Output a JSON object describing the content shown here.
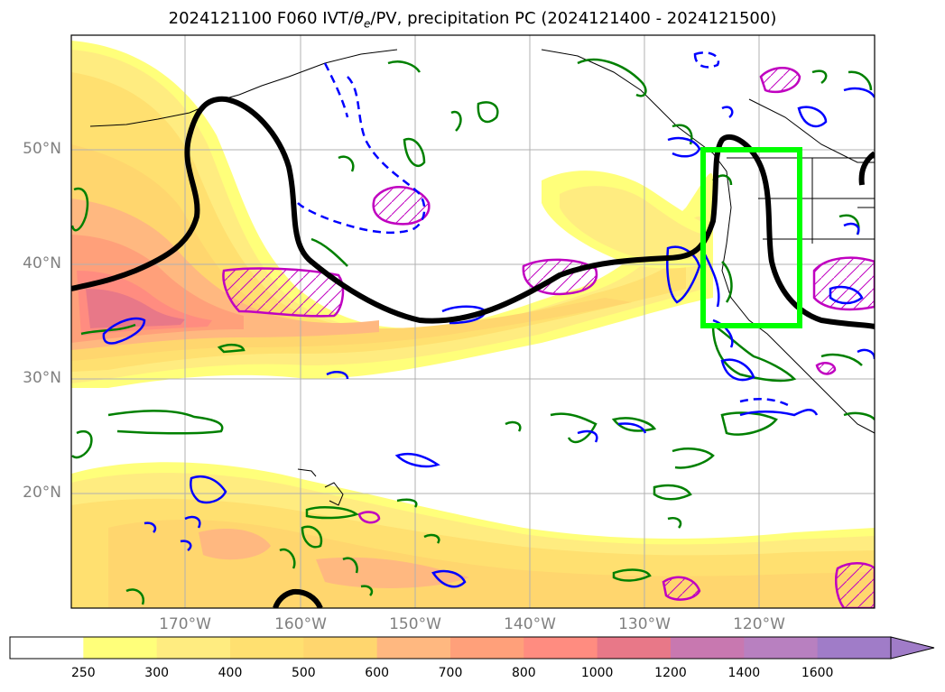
{
  "title": {
    "prefix": "2024121100 F060 IVT/",
    "theta": "θ",
    "theta_sub": "e",
    "suffix": "/PV, precipitation PC (2024121400 - 2024121500)"
  },
  "map": {
    "latitude_labels": [
      "50°N",
      "40°N",
      "30°N",
      "20°N"
    ],
    "longitude_labels": [
      "170°W",
      "160°W",
      "150°W",
      "140°W",
      "130°W",
      "120°W"
    ],
    "gridlines": true,
    "box_color": "#00ff00",
    "pv_contour_color": "#000000",
    "positive_precip_color": "#008000",
    "negative_precip_color": "#0000ff",
    "hatched_contour_color": "#c000c0"
  },
  "colorbar": {
    "ticks": [
      "250",
      "300",
      "400",
      "500",
      "600",
      "700",
      "800",
      "1000",
      "1200",
      "1400",
      "1600"
    ],
    "colors": [
      "#ffffff",
      "#ffff7a",
      "#ffec80",
      "#ffe070",
      "#ffd66e",
      "#ffb880",
      "#ffa07a",
      "#ff8c80",
      "#e87888",
      "#c878b0",
      "#b880c0",
      "#a07cc8"
    ],
    "extend": "max"
  }
}
